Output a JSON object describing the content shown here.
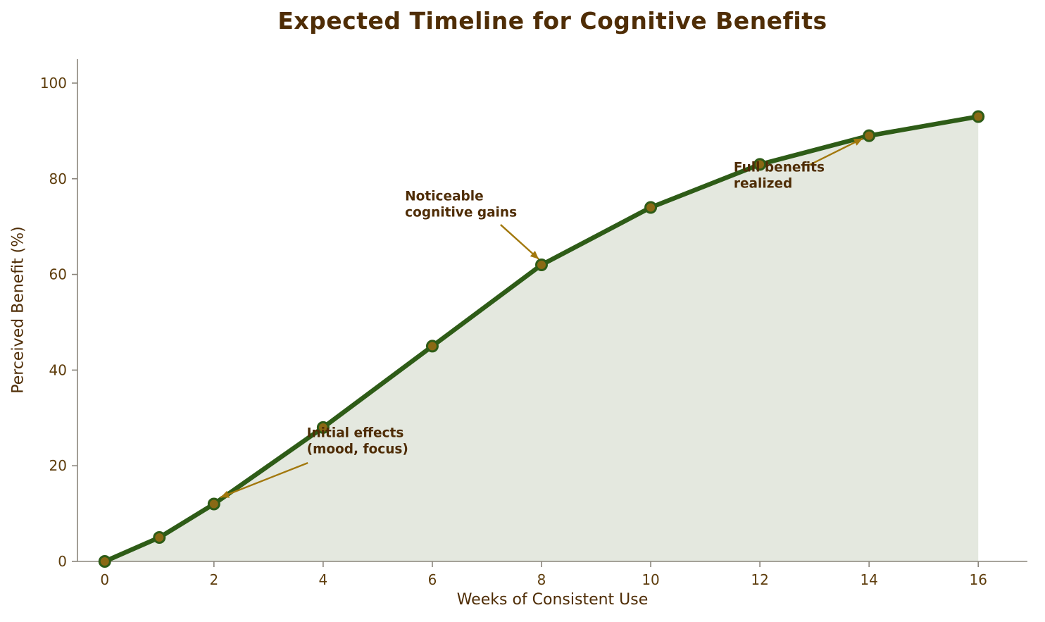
{
  "chart_data": {
    "type": "area",
    "title": "Expected Timeline for Cognitive Benefits",
    "xlabel": "Weeks of Consistent Use",
    "ylabel": "Perceived Benefit (%)",
    "x": [
      0,
      1,
      2,
      4,
      6,
      8,
      10,
      12,
      14,
      16
    ],
    "y": [
      0,
      5,
      12,
      28,
      45,
      62,
      74,
      83,
      89,
      93
    ],
    "xlim": [
      -0.5,
      16.9
    ],
    "ylim": [
      0,
      105
    ],
    "xticks": [
      0,
      2,
      4,
      6,
      8,
      10,
      12,
      14,
      16
    ],
    "yticks": [
      0,
      20,
      40,
      60,
      80,
      100
    ],
    "grid": false,
    "legend": "none",
    "baseline": 0,
    "annotations": [
      {
        "lines": [
          "Initial effects",
          "(mood, focus)"
        ],
        "xy": [
          2,
          12
        ],
        "text_pos": [
          3.7,
          26
        ],
        "arrow_start": [
          3.72,
          20.6
        ],
        "arrow_end": [
          2.12,
          13.4
        ]
      },
      {
        "lines": [
          "Noticeable",
          "cognitive gains"
        ],
        "xy": [
          8,
          62
        ],
        "text_pos": [
          5.5,
          75.5
        ],
        "arrow_start": [
          7.25,
          70.4
        ],
        "arrow_end": [
          7.95,
          63.2
        ]
      },
      {
        "lines": [
          "Full benefits",
          "realized"
        ],
        "xy": [
          14,
          89
        ],
        "text_pos": [
          11.52,
          81.5
        ],
        "arrow_start": [
          12.91,
          82.9
        ],
        "arrow_end": [
          13.88,
          88.4
        ]
      }
    ],
    "colors": {
      "line": "#2e5c17",
      "marker": "#8a6914",
      "fill": "#e4e8df",
      "title": "#4f2d06",
      "axis_text": "#5e3d0c",
      "annotation_text": "#4f2d06",
      "arrow": "#a2780d",
      "spine": "#8a857c"
    }
  }
}
